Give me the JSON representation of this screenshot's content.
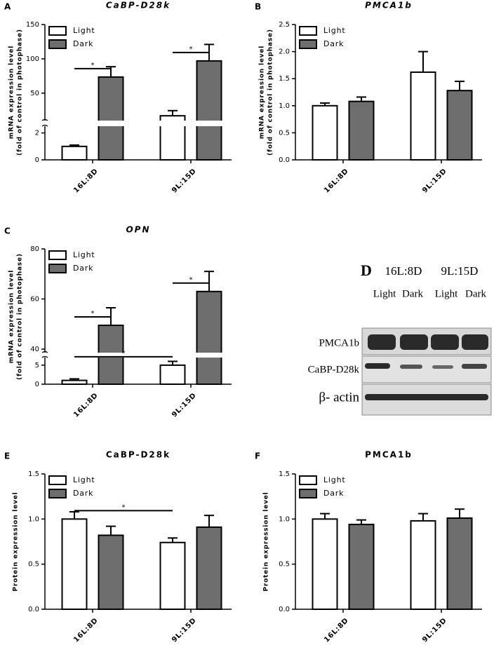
{
  "chart_data": [
    {
      "type": "bar",
      "label": "A",
      "title": "CaBP-D28k",
      "ylabel": [
        "mRNA expression level",
        "(fold of control in photophase)"
      ],
      "categories": [
        "16L:8D",
        "9L:15D"
      ],
      "series": [
        {
          "name": "Light",
          "color": "#ffffff",
          "values": [
            1,
            17
          ],
          "errors": [
            0.1,
            7.5
          ]
        },
        {
          "name": "Dark",
          "color": "#6e6e6e",
          "values": [
            73.5,
            97
          ],
          "errors": [
            15,
            24
          ]
        }
      ],
      "y_segments": [
        {
          "ylim": [
            0,
            2.5
          ],
          "yticks": [
            0,
            2
          ]
        },
        {
          "ylim": [
            10,
            150
          ],
          "yticks": [
            50,
            100,
            150
          ]
        }
      ],
      "significance": [
        {
          "text": "*",
          "from": [
            0,
            0
          ],
          "to": [
            1,
            0
          ]
        },
        {
          "text": "*",
          "from": [
            0,
            1
          ],
          "to": [
            1,
            1
          ]
        }
      ]
    },
    {
      "type": "bar",
      "label": "B",
      "title": "PMCA1b",
      "ylabel": [
        "mRNA expression level",
        "(fold of control in photophase)"
      ],
      "categories": [
        "16L:8D",
        "9L:15D"
      ],
      "series": [
        {
          "name": "Light",
          "color": "#ffffff",
          "values": [
            1.0,
            1.62
          ],
          "errors": [
            0.05,
            0.38
          ]
        },
        {
          "name": "Dark",
          "color": "#6e6e6e",
          "values": [
            1.08,
            1.28
          ],
          "errors": [
            0.08,
            0.17
          ]
        }
      ],
      "ylim": [
        0,
        2.5
      ],
      "yticks": [
        {
          "value": 0,
          "label": "0.0"
        },
        {
          "value": 0.5,
          "label": "0.5"
        },
        {
          "value": 1,
          "label": "1.0"
        },
        {
          "value": 1.5,
          "label": "1.5"
        },
        {
          "value": 2,
          "label": "2.0"
        },
        {
          "value": 2.5,
          "label": "2.5"
        }
      ],
      "significance": []
    },
    {
      "type": "bar",
      "label": "C",
      "title": "OPN",
      "ylabel": [
        "mRNA expression level",
        "(fold of control in photophase)"
      ],
      "categories": [
        "16L:8D",
        "9L:15D"
      ],
      "series": [
        {
          "name": "Light",
          "color": "#ffffff",
          "values": [
            1,
            5
          ],
          "errors": [
            0.4,
            1
          ]
        },
        {
          "name": "Dark",
          "color": "#6e6e6e",
          "values": [
            49.5,
            63
          ],
          "errors": [
            7,
            8
          ]
        }
      ],
      "y_segments": [
        {
          "ylim": [
            0,
            7
          ],
          "yticks": [
            0,
            5
          ]
        },
        {
          "ylim": [
            38.6,
            80
          ],
          "yticks": [
            40,
            60,
            80
          ]
        }
      ],
      "significance": [
        {
          "text": "*",
          "from": [
            0,
            0
          ],
          "to": [
            1,
            0
          ]
        },
        {
          "text": "*",
          "from": [
            0,
            0
          ],
          "to": [
            0,
            1
          ]
        },
        {
          "text": "*",
          "from": [
            0,
            1
          ],
          "to": [
            1,
            1
          ]
        }
      ]
    },
    {
      "type": "bar",
      "label": "E",
      "title": "CaBP-D28k",
      "ylabel": [
        "Protein expression level"
      ],
      "categories": [
        "16L:8D",
        "9L:15D"
      ],
      "series": [
        {
          "name": "Light",
          "color": "#ffffff",
          "values": [
            1.0,
            0.74
          ],
          "errors": [
            0.08,
            0.05
          ]
        },
        {
          "name": "Dark",
          "color": "#6e6e6e",
          "values": [
            0.82,
            0.91
          ],
          "errors": [
            0.1,
            0.13
          ]
        }
      ],
      "ylim": [
        0,
        1.5
      ],
      "yticks": [
        {
          "value": 0,
          "label": "0.0"
        },
        {
          "value": 0.5,
          "label": "0.5"
        },
        {
          "value": 1,
          "label": "1.0"
        },
        {
          "value": 1.5,
          "label": "1.5"
        }
      ],
      "significance": [
        {
          "text": "*",
          "from": [
            0,
            0
          ],
          "to": [
            0,
            1
          ]
        }
      ]
    },
    {
      "type": "bar",
      "label": "F",
      "title": "PMCA1b",
      "ylabel": [
        "Protein expression level"
      ],
      "categories": [
        "16L:8D",
        "9L:15D"
      ],
      "series": [
        {
          "name": "Light",
          "color": "#ffffff",
          "values": [
            1.0,
            0.98
          ],
          "errors": [
            0.06,
            0.08
          ]
        },
        {
          "name": "Dark",
          "color": "#6e6e6e",
          "values": [
            0.94,
            1.01
          ],
          "errors": [
            0.05,
            0.1
          ]
        }
      ],
      "ylim": [
        0,
        1.5
      ],
      "yticks": [
        {
          "value": 0,
          "label": "0.0"
        },
        {
          "value": 0.5,
          "label": "0.5"
        },
        {
          "value": 1,
          "label": "1.0"
        },
        {
          "value": 1.5,
          "label": "1.5"
        }
      ],
      "significance": []
    }
  ],
  "blot": {
    "label": "D",
    "groups": [
      "16L:8D",
      "9L:15D"
    ],
    "lanes": [
      "Light",
      "Dark",
      "Light",
      "Dark"
    ],
    "rows": [
      "PMCA1b",
      "CaBP-D28k",
      "β- actin"
    ]
  }
}
